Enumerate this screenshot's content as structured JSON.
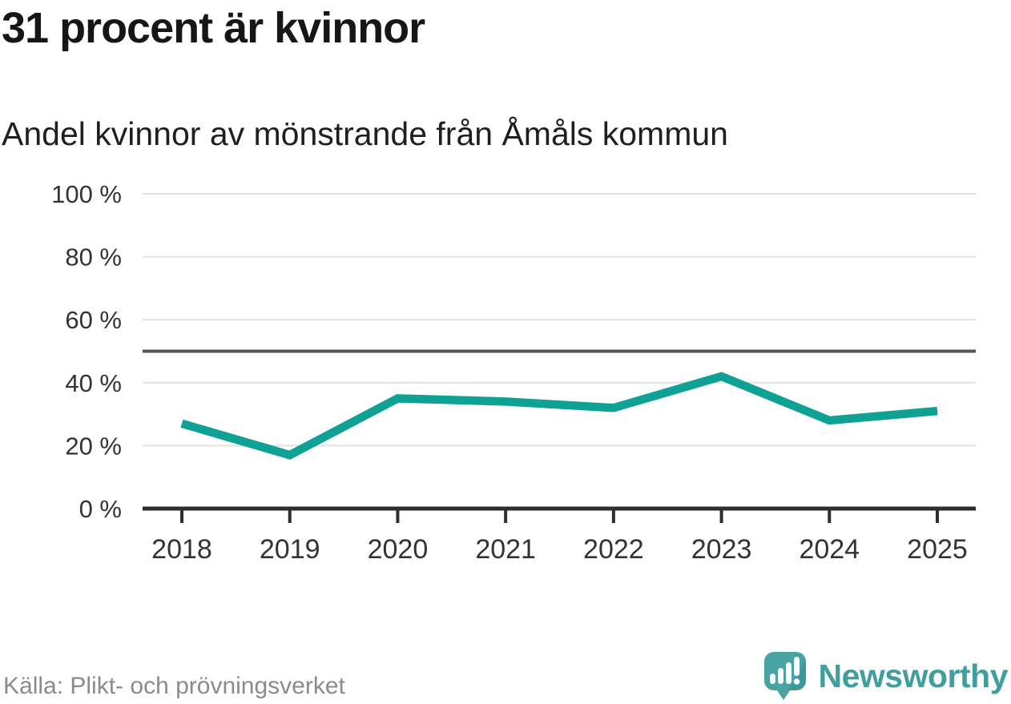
{
  "header": {
    "title": "31 procent är kvinnor",
    "subtitle": "Andel kvinnor av mönstrande från Åmåls kommun"
  },
  "footer": {
    "source": "Källa: Plikt- och prövningsverket",
    "brand": "Newsworthy",
    "brand_icon": "newsworthy-speech-bubble-barchart-icon"
  },
  "colors": {
    "line": "#0fa194",
    "reference_line": "#55565b",
    "grid": "#e1e1e1",
    "axis": "#2e2e2e",
    "tick_text": "#333333",
    "title_text": "#161616",
    "muted_text": "#8b8b8b",
    "brand_teal": "#48a3a2",
    "brand_teal_dark": "#378f91"
  },
  "chart_data": {
    "type": "line",
    "title": "31 procent är kvinnor",
    "subtitle": "Andel kvinnor av mönstrande från Åmåls kommun",
    "categories": [
      "2018",
      "2019",
      "2020",
      "2021",
      "2022",
      "2023",
      "2024",
      "2025"
    ],
    "series": [
      {
        "name": "Andel kvinnor av mönstrande",
        "color": "#0fa194",
        "values": [
          27,
          17,
          35,
          34,
          32,
          42,
          28,
          31
        ]
      }
    ],
    "unit": "%",
    "ylim": [
      0,
      100
    ],
    "yticks": [
      0,
      20,
      40,
      60,
      80,
      100
    ],
    "ytick_suffix": " %",
    "reference_line": {
      "value": 50
    },
    "grid": true,
    "legend": "none",
    "source": "Källa: Plikt- och prövningsverket"
  }
}
